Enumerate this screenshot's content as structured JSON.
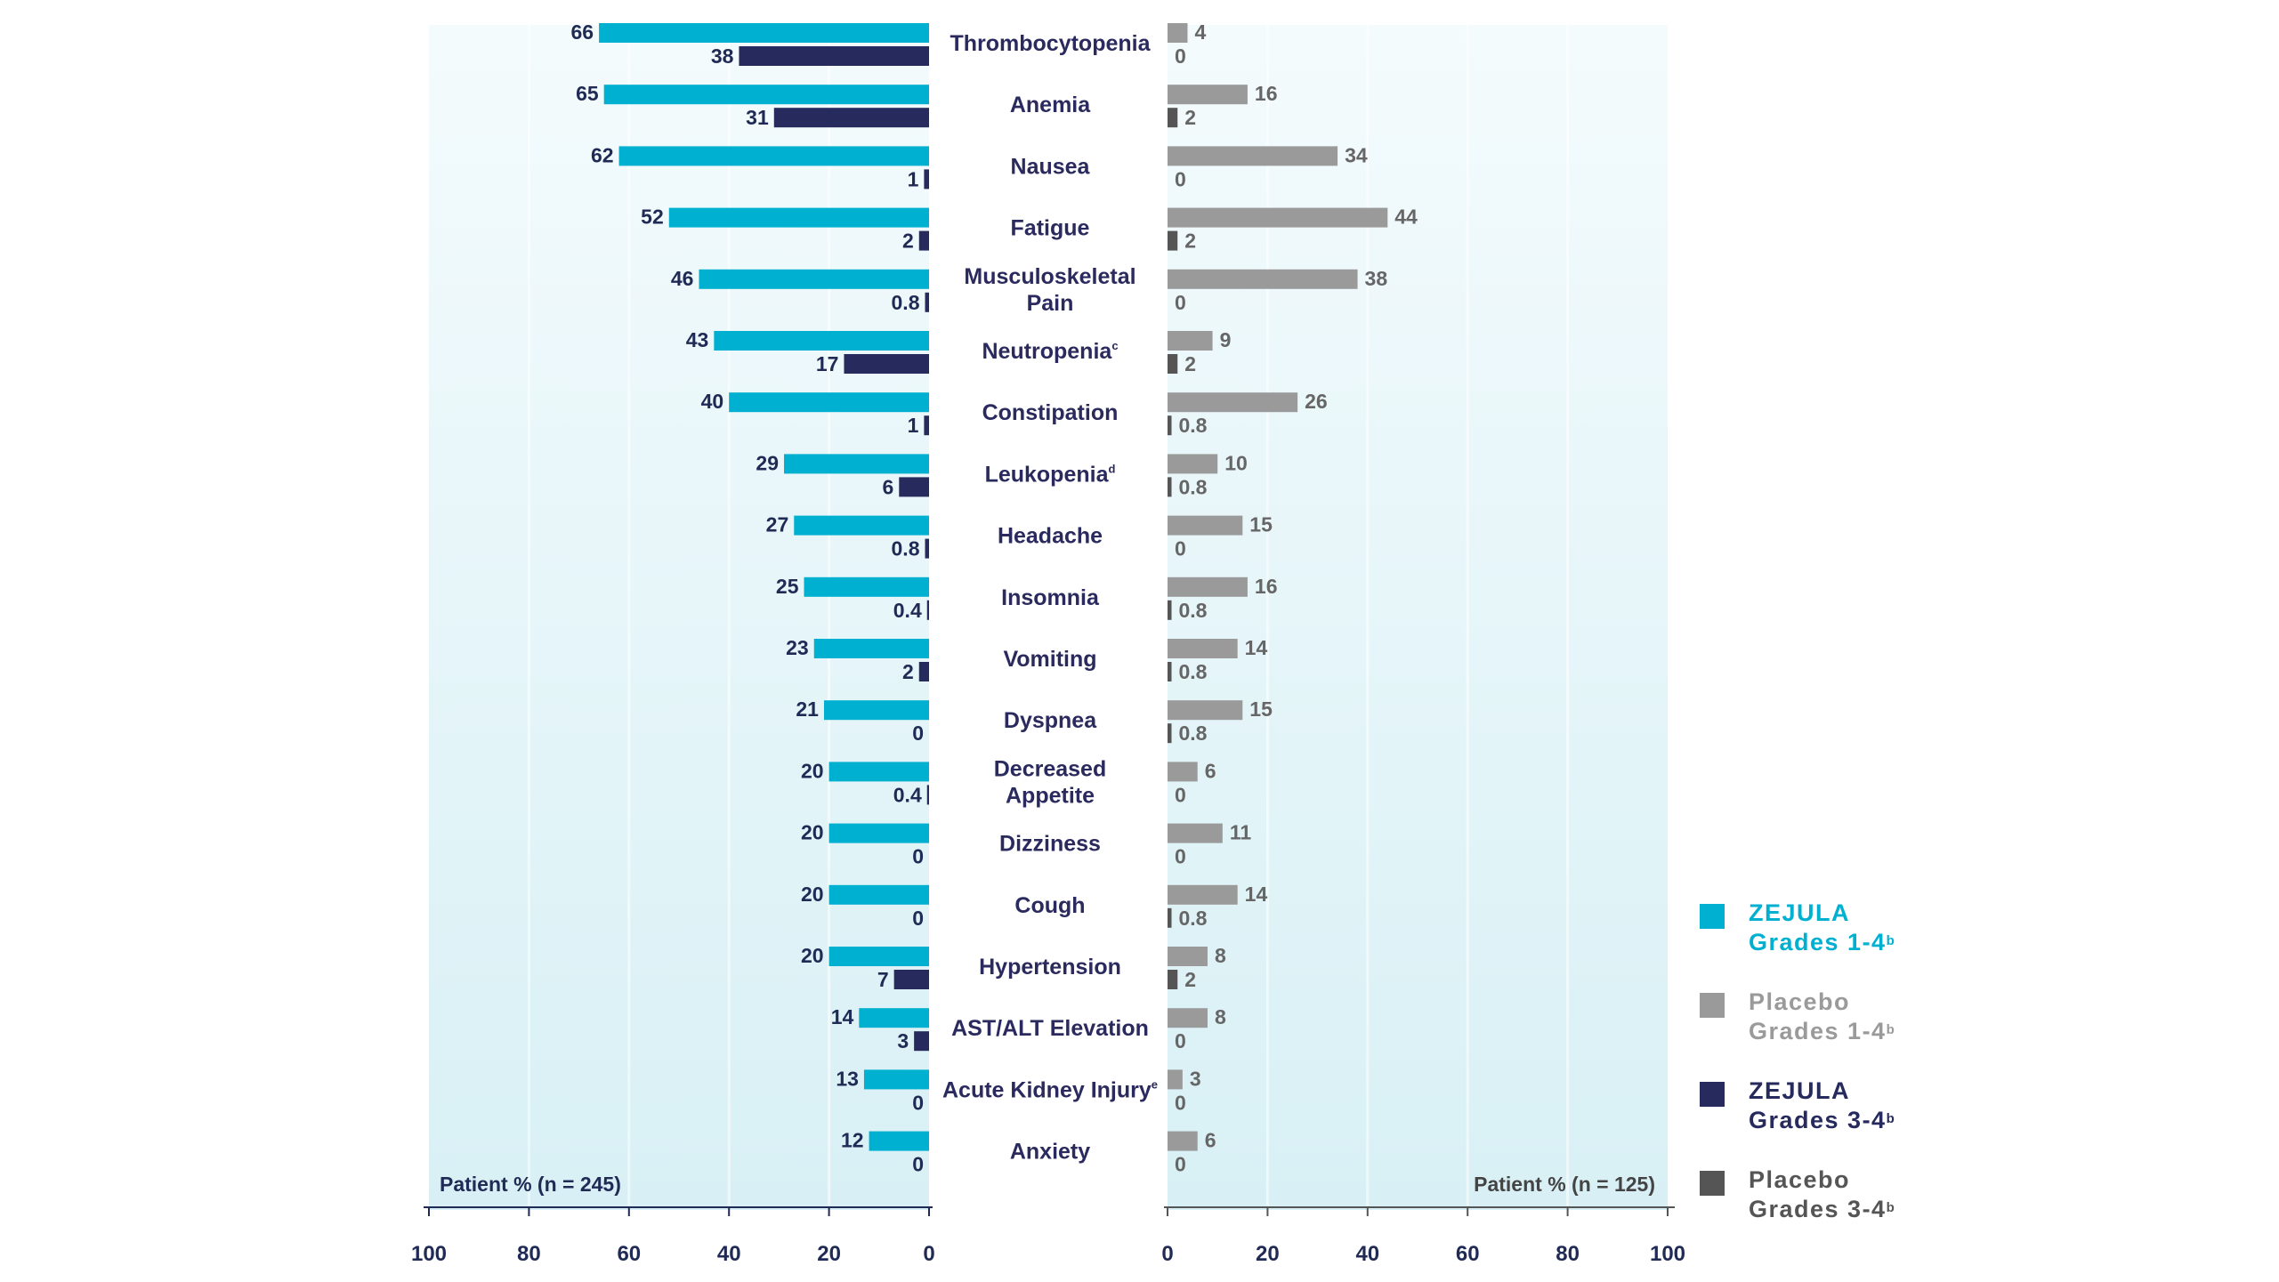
{
  "chart_data": {
    "type": "bar",
    "orientation": "horizontal-butterfly",
    "categories": [
      {
        "main": "Thrombocytopenia",
        "sup": ""
      },
      {
        "main": "Anemia",
        "sup": ""
      },
      {
        "main": "Nausea",
        "sup": ""
      },
      {
        "main": "Fatigue",
        "sup": ""
      },
      {
        "main": "Musculoskeletal Pain",
        "sup": "",
        "lines": [
          "Musculoskeletal",
          "Pain"
        ]
      },
      {
        "main": "Neutropenia",
        "sup": "c"
      },
      {
        "main": "Constipation",
        "sup": ""
      },
      {
        "main": "Leukopenia",
        "sup": "d"
      },
      {
        "main": "Headache",
        "sup": ""
      },
      {
        "main": "Insomnia",
        "sup": ""
      },
      {
        "main": "Vomiting",
        "sup": ""
      },
      {
        "main": "Dyspnea",
        "sup": ""
      },
      {
        "main": "Decreased Appetite",
        "sup": "",
        "lines": [
          "Decreased",
          "Appetite"
        ]
      },
      {
        "main": "Dizziness",
        "sup": ""
      },
      {
        "main": "Cough",
        "sup": ""
      },
      {
        "main": "Hypertension",
        "sup": ""
      },
      {
        "main": "AST/ALT Elevation",
        "sup": ""
      },
      {
        "main": "Acute Kidney Injury",
        "sup": "e"
      },
      {
        "main": "Anxiety",
        "sup": ""
      }
    ],
    "series": [
      {
        "name": "ZEJULA Grades 1-4",
        "color": "#00b0d0",
        "values": [
          66,
          65,
          62,
          52,
          46,
          43,
          40,
          29,
          27,
          25,
          23,
          21,
          20,
          20,
          20,
          20,
          14,
          13,
          12
        ],
        "labels": [
          "66",
          "65",
          "62",
          "52",
          "46",
          "43",
          "40",
          "29",
          "27",
          "25",
          "23",
          "21",
          "20",
          "20",
          "20",
          "20",
          "14",
          "13",
          "12"
        ]
      },
      {
        "name": "ZEJULA Grades 3-4",
        "color": "#262a5c",
        "values": [
          38,
          31,
          1,
          2,
          0.8,
          17,
          1,
          6,
          0.8,
          0.4,
          2,
          0,
          0.4,
          0,
          0,
          7,
          3,
          0,
          0
        ],
        "labels": [
          "38",
          "31",
          "1",
          "2",
          "0.8",
          "17",
          "1",
          "6",
          "0.8",
          "0.4",
          "2",
          "0",
          "0.4",
          "0",
          "0",
          "7",
          "3",
          "0",
          "0"
        ]
      },
      {
        "name": "Placebo Grades 1-4",
        "color": "#9a9a9a",
        "values": [
          4,
          16,
          34,
          44,
          38,
          9,
          26,
          10,
          15,
          16,
          14,
          15,
          6,
          11,
          14,
          8,
          8,
          3,
          6
        ],
        "labels": [
          "4",
          "16",
          "34",
          "44",
          "38",
          "9",
          "26",
          "10",
          "15",
          "16",
          "14",
          "15",
          "6",
          "11",
          "14",
          "8",
          "8",
          "3",
          "6"
        ]
      },
      {
        "name": "Placebo Grades 3-4",
        "color": "#555555",
        "values": [
          0,
          2,
          0,
          2,
          0,
          2,
          0.8,
          0.8,
          0,
          0.8,
          0.8,
          0.8,
          0,
          0,
          0.8,
          2,
          0,
          0,
          0
        ],
        "labels": [
          "0",
          "2",
          "0",
          "2",
          "0",
          "2",
          "0.8",
          "0.8",
          "0",
          "0.8",
          "0.8",
          "0.8",
          "0",
          "0",
          "0.8",
          "2",
          "0",
          "0",
          "0"
        ]
      }
    ],
    "left_axis": {
      "label": "Patient % (n = 245)",
      "range": [
        100,
        0
      ],
      "ticks": [
        "100",
        "80",
        "60",
        "40",
        "20",
        "0"
      ]
    },
    "right_axis": {
      "label": "Patient % (n = 125)",
      "range": [
        0,
        100
      ],
      "ticks": [
        "0",
        "20",
        "40",
        "60",
        "80",
        "100"
      ]
    },
    "legend_position": "bottom-right"
  },
  "legend": [
    {
      "line1": "ZEJULA",
      "line2": "Grades 1-4",
      "sup": "b",
      "color": "#00b0d0"
    },
    {
      "line1": "Placebo",
      "line2": "Grades 1-4",
      "sup": "b",
      "color": "#9a9a9a"
    },
    {
      "line1": "ZEJULA",
      "line2": "Grades 3-4",
      "sup": "b",
      "color": "#262a5c"
    },
    {
      "line1": "Placebo",
      "line2": "Grades 3-4",
      "sup": "b",
      "color": "#555555"
    }
  ]
}
